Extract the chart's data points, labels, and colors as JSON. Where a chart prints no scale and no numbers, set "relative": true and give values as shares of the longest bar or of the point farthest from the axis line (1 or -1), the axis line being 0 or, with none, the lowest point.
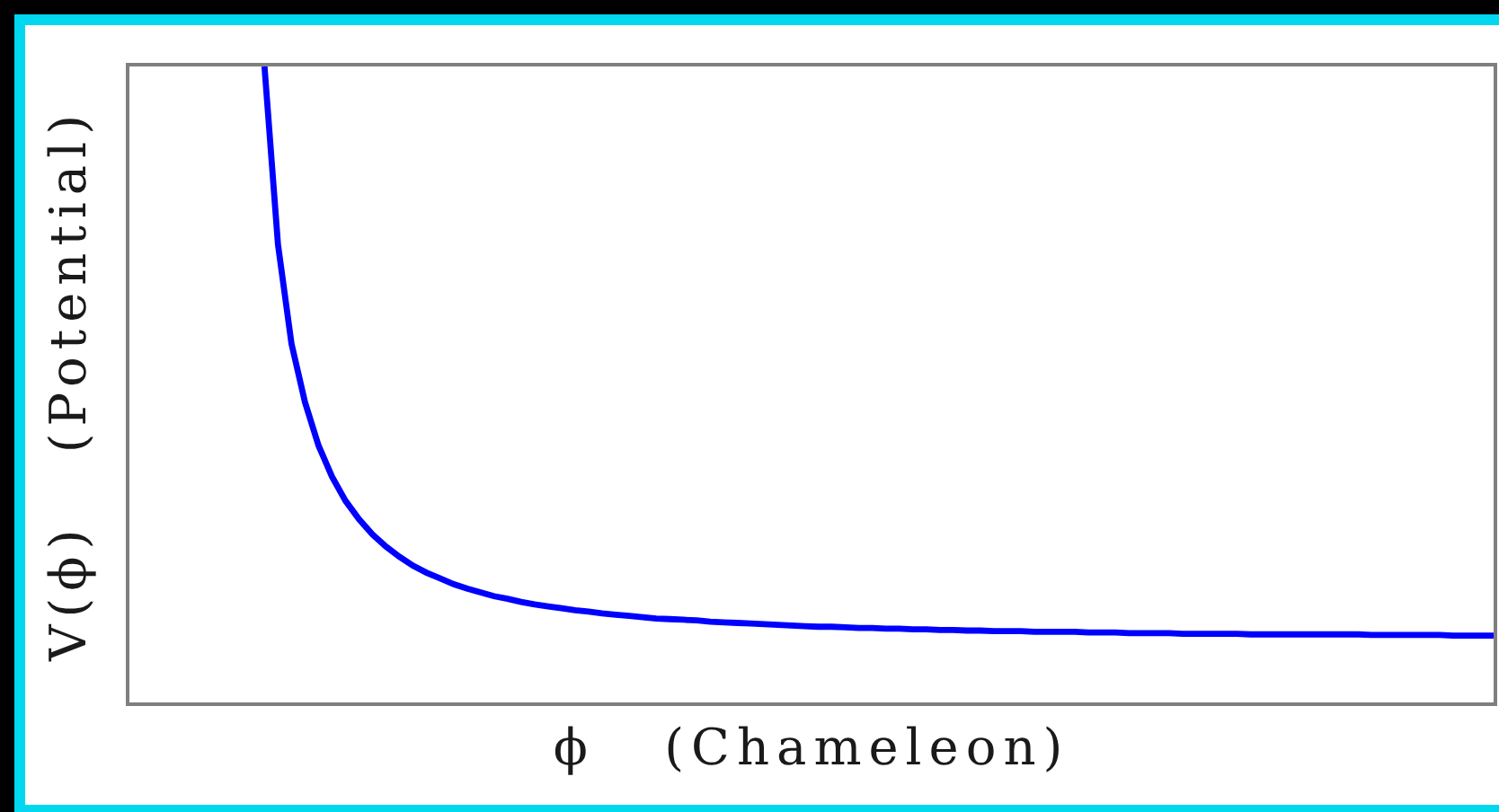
{
  "chart_data": {
    "type": "line",
    "relative": true,
    "xlabel": "ϕ   (Chameleon)",
    "ylabel": "V(ϕ)   (Potential)",
    "tick_labels": false,
    "line_style": "solid",
    "categories": [
      null,
      null,
      null,
      null,
      null,
      null,
      null,
      null,
      null,
      null,
      null,
      null,
      null,
      null,
      null,
      null,
      null,
      null,
      null,
      null,
      null,
      null,
      null,
      null,
      null,
      null,
      null,
      null,
      null,
      null,
      null,
      null,
      null,
      null,
      null,
      null,
      null,
      null,
      null,
      null,
      null,
      null,
      null,
      null,
      null,
      null,
      null,
      null,
      null,
      null,
      null,
      null,
      null,
      null,
      null,
      null,
      null,
      null,
      null,
      null,
      null,
      null,
      null,
      null,
      null,
      null,
      null,
      null,
      null,
      null,
      null,
      null,
      null,
      null,
      null,
      null,
      null,
      null,
      null,
      null,
      null,
      null,
      null,
      null,
      null,
      null,
      null,
      null,
      null,
      null,
      null,
      null,
      null,
      null,
      null,
      null,
      null,
      null,
      null,
      null,
      null,
      null
    ],
    "series": [
      {
        "color": "#0000ff",
        "values": [
          null,
          null,
          null,
          null,
          null,
          null,
          null,
          null,
          null,
          null,
          1.0,
          0.72,
          0.564,
          0.472,
          0.404,
          0.355,
          0.317,
          0.288,
          0.264,
          0.245,
          0.229,
          0.215,
          0.204,
          0.195,
          0.186,
          0.179,
          0.173,
          0.167,
          0.163,
          0.158,
          0.154,
          0.151,
          0.148,
          0.145,
          0.143,
          0.14,
          0.138,
          0.136,
          0.134,
          0.132,
          0.131,
          0.13,
          0.129,
          0.127,
          0.126,
          0.125,
          0.124,
          0.123,
          0.122,
          0.121,
          0.12,
          0.119,
          0.119,
          0.118,
          0.117,
          0.117,
          0.116,
          0.116,
          0.115,
          0.115,
          0.114,
          0.114,
          0.113,
          0.113,
          0.112,
          0.112,
          0.112,
          0.111,
          0.111,
          0.111,
          0.111,
          0.11,
          0.11,
          0.11,
          0.109,
          0.109,
          0.109,
          0.109,
          0.108,
          0.108,
          0.108,
          0.108,
          0.108,
          0.107,
          0.107,
          0.107,
          0.107,
          0.107,
          0.107,
          0.107,
          0.107,
          0.107,
          0.106,
          0.106,
          0.106,
          0.106,
          0.106,
          0.106,
          0.105,
          0.105,
          0.105,
          0.105
        ]
      }
    ]
  }
}
